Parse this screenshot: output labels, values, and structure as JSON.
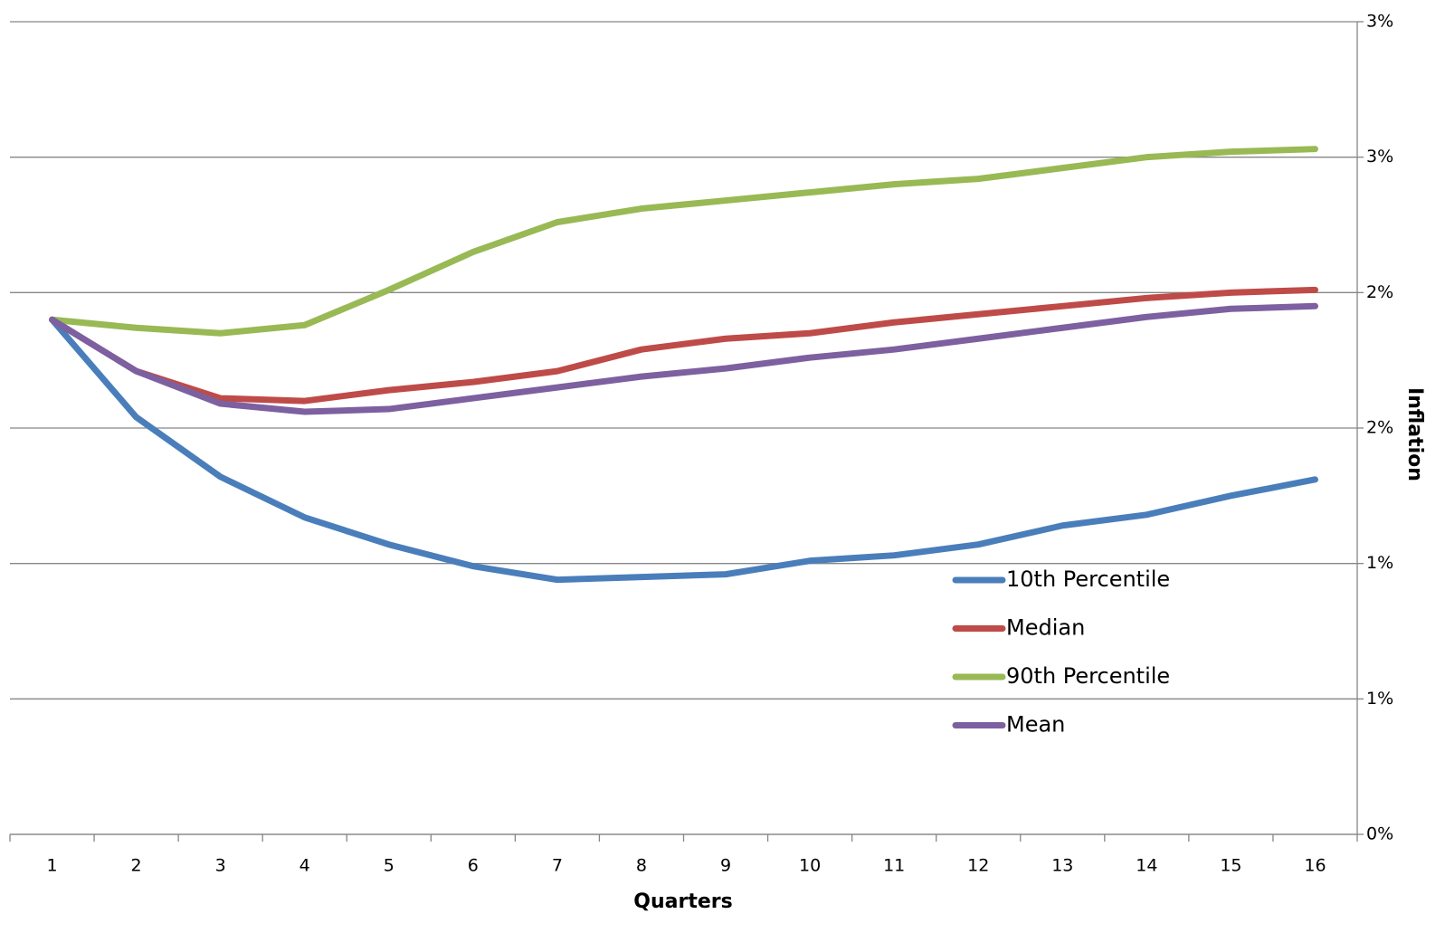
{
  "chart_data": {
    "type": "line",
    "x_label": "Quarters",
    "y_label": "Inflation",
    "categories": [
      "1",
      "2",
      "3",
      "4",
      "5",
      "6",
      "7",
      "8",
      "9",
      "10",
      "11",
      "12",
      "13",
      "14",
      "15",
      "16"
    ],
    "series": [
      {
        "name": "10th Percentile",
        "color": "#4a7ebb",
        "values": [
          1.9,
          1.54,
          1.32,
          1.17,
          1.07,
          0.99,
          0.94,
          0.95,
          0.96,
          1.01,
          1.03,
          1.07,
          1.14,
          1.18,
          1.25,
          1.31
        ]
      },
      {
        "name": "Median",
        "color": "#be4b48",
        "values": [
          1.9,
          1.71,
          1.61,
          1.6,
          1.64,
          1.67,
          1.71,
          1.79,
          1.83,
          1.85,
          1.89,
          1.92,
          1.95,
          1.98,
          2.0,
          2.01
        ]
      },
      {
        "name": "90th Percentile",
        "color": "#98b954",
        "values": [
          1.9,
          1.87,
          1.85,
          1.88,
          2.01,
          2.15,
          2.26,
          2.31,
          2.34,
          2.37,
          2.4,
          2.42,
          2.46,
          2.5,
          2.52,
          2.53
        ]
      },
      {
        "name": "Mean",
        "color": "#7d60a0",
        "values": [
          1.9,
          1.71,
          1.59,
          1.56,
          1.57,
          1.61,
          1.65,
          1.69,
          1.72,
          1.76,
          1.79,
          1.83,
          1.87,
          1.91,
          1.94,
          1.95
        ]
      }
    ],
    "ylim": [
      0,
      3
    ],
    "yticks": [
      {
        "value": 0,
        "label": "0%"
      },
      {
        "value": 0.5,
        "label": "1%"
      },
      {
        "value": 1,
        "label": "1%"
      },
      {
        "value": 1.5,
        "label": "2%"
      },
      {
        "value": 2,
        "label": "2%"
      },
      {
        "value": 2.5,
        "label": "3%"
      },
      {
        "value": 3,
        "label": "3%"
      }
    ],
    "grid": true,
    "y_axis_side": "right",
    "legend": "inside"
  }
}
